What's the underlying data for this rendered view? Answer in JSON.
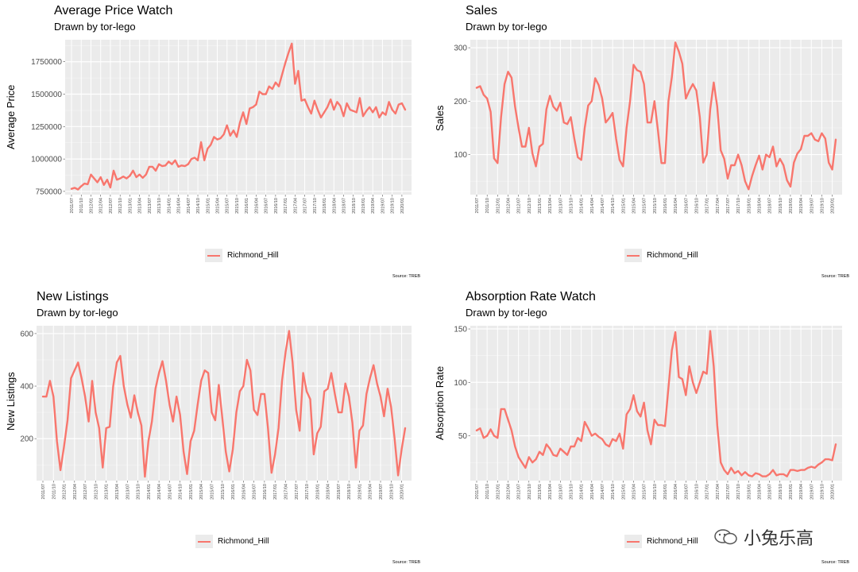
{
  "months": [
    "2011/07",
    "2011/08",
    "2011/09",
    "2011/10",
    "2011/11",
    "2011/12",
    "2012/01",
    "2012/02",
    "2012/03",
    "2012/04",
    "2012/05",
    "2012/06",
    "2012/07",
    "2012/08",
    "2012/09",
    "2012/10",
    "2012/11",
    "2012/12",
    "2013/01",
    "2013/02",
    "2013/03",
    "2013/04",
    "2013/05",
    "2013/06",
    "2013/07",
    "2013/08",
    "2013/09",
    "2013/10",
    "2013/11",
    "2013/12",
    "2014/01",
    "2014/02",
    "2014/03",
    "2014/04",
    "2014/05",
    "2014/06",
    "2014/07",
    "2014/08",
    "2014/09",
    "2014/10",
    "2014/11",
    "2014/12",
    "2015/01",
    "2015/02",
    "2015/03",
    "2015/04",
    "2015/05",
    "2015/06",
    "2015/07",
    "2015/08",
    "2015/09",
    "2015/10",
    "2015/11",
    "2015/12",
    "2016/01",
    "2016/02",
    "2016/03",
    "2016/04",
    "2016/05",
    "2016/06",
    "2016/07",
    "2016/08",
    "2016/09",
    "2016/10",
    "2016/11",
    "2016/12",
    "2017/01",
    "2017/02",
    "2017/03",
    "2017/04",
    "2017/05",
    "2017/06",
    "2017/07",
    "2017/08",
    "2017/09",
    "2017/10",
    "2017/11",
    "2017/12",
    "2018/01",
    "2018/02",
    "2018/03",
    "2018/04",
    "2018/05",
    "2018/06",
    "2018/07",
    "2018/08",
    "2018/09",
    "2018/10",
    "2018/11",
    "2018/12",
    "2019/01",
    "2019/02",
    "2019/03",
    "2019/04",
    "2019/05",
    "2019/06",
    "2019/07",
    "2019/08",
    "2019/09",
    "2019/10",
    "2019/11",
    "2019/12",
    "2020/01",
    "2020/02"
  ],
  "source_label": "Source: TREB",
  "legend_label": "Richmond_Hill",
  "series_color": "#F8766D",
  "watermark": "小兔乐高",
  "chart_data": [
    {
      "type": "line",
      "title": "Average Price Watch",
      "subtitle": "Drawn by tor-lego",
      "xlabel": "",
      "ylabel": "Average Price",
      "ylim": [
        725000,
        1920000
      ],
      "yticks": [
        750000,
        1000000,
        1250000,
        1500000,
        1750000
      ],
      "ytick_labels": [
        "750000",
        "1000000",
        "1250000",
        "1500000",
        "1750000"
      ],
      "series": [
        {
          "name": "Richmond_Hill",
          "values": [
            770000,
            778000,
            765000,
            790000,
            810000,
            805000,
            880000,
            850000,
            820000,
            860000,
            800000,
            840000,
            780000,
            910000,
            840000,
            850000,
            865000,
            850000,
            870000,
            910000,
            860000,
            880000,
            855000,
            880000,
            940000,
            940000,
            910000,
            960000,
            945000,
            950000,
            980000,
            960000,
            990000,
            940000,
            950000,
            945000,
            960000,
            1000000,
            1010000,
            990000,
            1130000,
            990000,
            1080000,
            1110000,
            1170000,
            1150000,
            1160000,
            1190000,
            1260000,
            1180000,
            1220000,
            1170000,
            1280000,
            1360000,
            1270000,
            1390000,
            1400000,
            1420000,
            1520000,
            1500000,
            1500000,
            1560000,
            1540000,
            1590000,
            1560000,
            1650000,
            1740000,
            1820000,
            1890000,
            1580000,
            1680000,
            1450000,
            1460000,
            1400000,
            1350000,
            1450000,
            1380000,
            1320000,
            1360000,
            1400000,
            1460000,
            1380000,
            1440000,
            1410000,
            1330000,
            1430000,
            1380000,
            1370000,
            1360000,
            1470000,
            1330000,
            1370000,
            1400000,
            1360000,
            1400000,
            1320000,
            1360000,
            1340000,
            1440000,
            1380000,
            1350000,
            1420000,
            1430000,
            1380000
          ]
        }
      ]
    },
    {
      "type": "line",
      "title": "Sales",
      "subtitle": "Drawn by tor-lego",
      "xlabel": "",
      "ylabel": "Sales",
      "ylim": [
        25,
        315
      ],
      "yticks": [
        100,
        200,
        300
      ],
      "ytick_labels": [
        "100",
        "200",
        "300"
      ],
      "series": [
        {
          "name": "Richmond_Hill",
          "values": [
            225,
            228,
            212,
            205,
            180,
            93,
            84,
            170,
            232,
            255,
            244,
            190,
            150,
            115,
            115,
            150,
            102,
            78,
            115,
            120,
            185,
            210,
            190,
            182,
            197,
            160,
            157,
            170,
            130,
            95,
            90,
            150,
            192,
            200,
            243,
            230,
            205,
            160,
            168,
            178,
            130,
            90,
            78,
            150,
            200,
            268,
            258,
            255,
            232,
            160,
            160,
            200,
            145,
            84,
            84,
            200,
            245,
            310,
            293,
            270,
            205,
            220,
            232,
            220,
            170,
            85,
            100,
            185,
            235,
            190,
            108,
            92,
            55,
            80,
            80,
            100,
            80,
            50,
            35,
            60,
            80,
            98,
            72,
            100,
            95,
            115,
            78,
            92,
            80,
            52,
            40,
            85,
            102,
            110,
            135,
            135,
            140,
            128,
            125,
            140,
            130,
            85,
            72,
            128
          ]
        }
      ]
    },
    {
      "type": "line",
      "title": "New Listings",
      "subtitle": "Drawn by tor-lego",
      "xlabel": "",
      "ylabel": "New Listings",
      "ylim": [
        40,
        630
      ],
      "yticks": [
        200,
        400,
        600
      ],
      "ytick_labels": [
        "200",
        "400",
        "600"
      ],
      "series": [
        {
          "name": "Richmond_Hill",
          "values": [
            360,
            360,
            420,
            360,
            190,
            80,
            170,
            270,
            430,
            460,
            490,
            430,
            360,
            265,
            420,
            300,
            240,
            90,
            240,
            245,
            400,
            490,
            515,
            400,
            330,
            280,
            365,
            300,
            250,
            55,
            190,
            265,
            390,
            450,
            495,
            420,
            330,
            265,
            360,
            290,
            150,
            65,
            190,
            230,
            330,
            420,
            460,
            450,
            300,
            270,
            405,
            280,
            150,
            75,
            160,
            300,
            380,
            400,
            500,
            460,
            310,
            290,
            370,
            370,
            240,
            70,
            140,
            240,
            420,
            530,
            610,
            490,
            310,
            230,
            450,
            380,
            350,
            140,
            220,
            245,
            380,
            390,
            450,
            370,
            300,
            300,
            410,
            360,
            260,
            90,
            230,
            250,
            370,
            430,
            480,
            410,
            360,
            285,
            390,
            320,
            200,
            60,
            160,
            240
          ]
        }
      ]
    },
    {
      "type": "line",
      "title": "Absorption Rate Watch",
      "subtitle": "Drawn by tor-lego",
      "xlabel": "",
      "ylabel": "Absorption Rate",
      "ylim": [
        8,
        153
      ],
      "yticks": [
        50,
        100,
        150
      ],
      "ytick_labels": [
        "50",
        "100",
        "150"
      ],
      "series": [
        {
          "name": "Richmond_Hill",
          "values": [
            55,
            57,
            48,
            50,
            56,
            50,
            48,
            75,
            75,
            65,
            55,
            40,
            30,
            25,
            20,
            30,
            25,
            28,
            35,
            32,
            42,
            38,
            32,
            31,
            38,
            35,
            32,
            40,
            40,
            48,
            45,
            63,
            57,
            50,
            52,
            49,
            47,
            42,
            40,
            47,
            45,
            52,
            38,
            70,
            75,
            88,
            73,
            68,
            81,
            55,
            42,
            65,
            60,
            60,
            59,
            95,
            130,
            147,
            105,
            103,
            88,
            115,
            100,
            90,
            100,
            110,
            108,
            148,
            115,
            60,
            25,
            18,
            14,
            20,
            15,
            17,
            13,
            16,
            13,
            12,
            15,
            14,
            12,
            12,
            14,
            18,
            13,
            14,
            14,
            12,
            18,
            18,
            17,
            18,
            18,
            20,
            21,
            20,
            23,
            25,
            28,
            28,
            27,
            42
          ]
        }
      ]
    }
  ]
}
